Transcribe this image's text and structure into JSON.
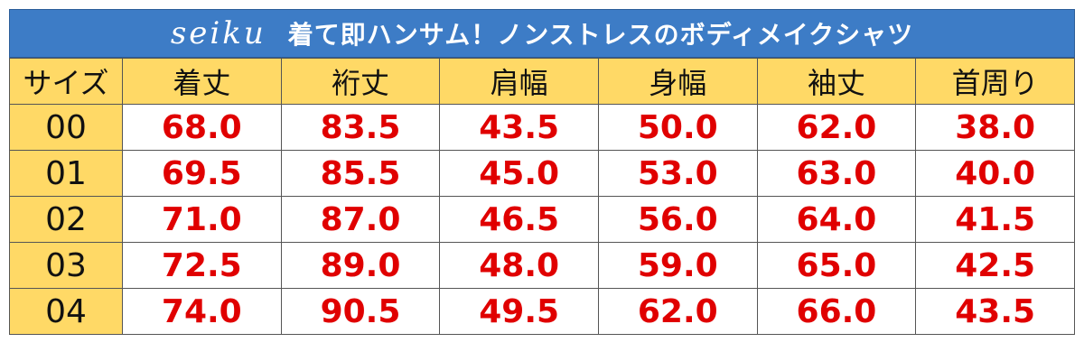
{
  "header": {
    "brand": "seiku",
    "title": "着て即ハンサム！ノンストレスのボディメイクシャツ"
  },
  "table": {
    "columns": [
      "サイズ",
      "着丈",
      "裄丈",
      "肩幅",
      "身幅",
      "袖丈",
      "首周り"
    ],
    "rows": [
      [
        "00",
        "68.0",
        "83.5",
        "43.5",
        "50.0",
        "62.0",
        "38.0"
      ],
      [
        "01",
        "69.5",
        "85.5",
        "45.0",
        "53.0",
        "63.0",
        "40.0"
      ],
      [
        "02",
        "71.0",
        "87.0",
        "46.5",
        "56.0",
        "64.0",
        "41.5"
      ],
      [
        "03",
        "72.5",
        "89.0",
        "48.0",
        "59.0",
        "65.0",
        "42.5"
      ],
      [
        "04",
        "74.0",
        "90.5",
        "49.5",
        "62.0",
        "66.0",
        "43.5"
      ]
    ]
  }
}
